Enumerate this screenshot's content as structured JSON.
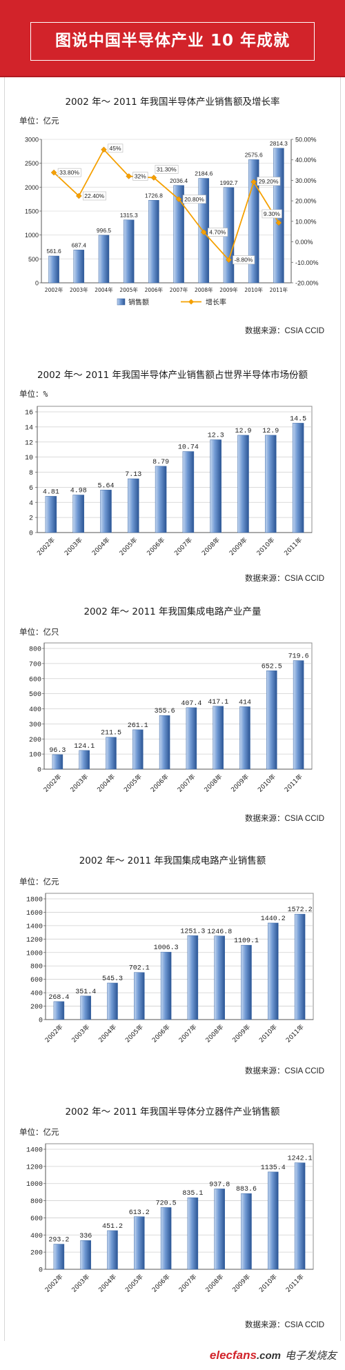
{
  "header": {
    "title": "图说中国半导体产业 10 年成就"
  },
  "colors": {
    "header_red": "#d2232a",
    "bar_blue": "#5b86c4",
    "line_orange": "#f5a000"
  },
  "chart_data": [
    {
      "type": "bar",
      "title": "2002 年～ 2011 年我国半导体产业销售额及增长率",
      "unit": "单位：亿元",
      "categories": [
        "2002年",
        "2003年",
        "2004年",
        "2005年",
        "2006年",
        "2007年",
        "2008年",
        "2009年",
        "2010年",
        "2011年"
      ],
      "series": [
        {
          "name": "销售额",
          "type": "bar",
          "values": [
            561.6,
            687.4,
            996.5,
            1315.3,
            1726.8,
            2036.4,
            2184.6,
            1992.7,
            2575.6,
            2814.3
          ]
        },
        {
          "name": "增长率",
          "type": "line",
          "values": [
            33.8,
            22.4,
            45,
            32,
            31.3,
            20.8,
            4.7,
            -8.8,
            29.2,
            9.3
          ],
          "labels": [
            "33.80%",
            "22.40%",
            "45%",
            "32%",
            "31.30%",
            "20.80%",
            "4.70%",
            "-8.80%",
            "29.20%",
            "9.30%"
          ]
        }
      ],
      "ylim": [
        0,
        3000
      ],
      "yticks": [
        0,
        500,
        1000,
        1500,
        2000,
        2500,
        3000
      ],
      "y2lim": [
        -20,
        50
      ],
      "y2ticks": [
        -20,
        -10,
        0,
        10,
        20,
        30,
        40,
        50
      ],
      "grid": true,
      "legend": "bottom",
      "source": "数据来源：CSIA CCID"
    },
    {
      "type": "bar",
      "title": "2002 年～ 2011 年我国半导体产业销售额占世界半导体市场份额",
      "unit": "单位：%",
      "categories": [
        "2002年",
        "2003年",
        "2004年",
        "2005年",
        "2006年",
        "2007年",
        "2008年",
        "2009年",
        "2010年",
        "2011年"
      ],
      "values": [
        4.81,
        4.98,
        5.64,
        7.13,
        8.79,
        10.74,
        12.3,
        12.9,
        12.9,
        14.5
      ],
      "ylim": [
        0,
        16
      ],
      "yticks": [
        0,
        2,
        4,
        6,
        8,
        10,
        12,
        14,
        16
      ],
      "grid": true,
      "source": "数据来源：CSIA CCID"
    },
    {
      "type": "bar",
      "title": "2002 年～ 2011 年我国集成电路产业产量",
      "unit": "单位：亿只",
      "categories": [
        "2002年",
        "2003年",
        "2004年",
        "2005年",
        "2006年",
        "2007年",
        "2008年",
        "2009年",
        "2010年",
        "2011年"
      ],
      "values": [
        96.3,
        124.1,
        211.5,
        261.1,
        355.6,
        407.4,
        417.1,
        414,
        652.5,
        719.6
      ],
      "ylim": [
        0,
        800
      ],
      "yticks": [
        0,
        100,
        200,
        300,
        400,
        500,
        600,
        700,
        800
      ],
      "grid": true,
      "source": "数据来源：CSIA CCID"
    },
    {
      "type": "bar",
      "title": "2002 年～ 2011 年我国集成电路产业销售额",
      "unit": "单位：亿元",
      "categories": [
        "2002年",
        "2003年",
        "2004年",
        "2005年",
        "2006年",
        "2007年",
        "2008年",
        "2009年",
        "2010年",
        "2011年"
      ],
      "values": [
        268.4,
        351.4,
        545.3,
        702.1,
        1006.3,
        1251.3,
        1246.8,
        1109.1,
        1440.2,
        1572.2
      ],
      "ylim": [
        0,
        1800
      ],
      "yticks": [
        0,
        200,
        400,
        600,
        800,
        1000,
        1200,
        1400,
        1600,
        1800
      ],
      "grid": true,
      "source": "数据来源：CSIA CCID"
    },
    {
      "type": "bar",
      "title": "2002 年～ 2011 年我国半导体分立器件产业销售额",
      "unit": "单位：亿元",
      "categories": [
        "2002年",
        "2003年",
        "2004年",
        "2005年",
        "2006年",
        "2007年",
        "2008年",
        "2009年",
        "2010年",
        "2011年"
      ],
      "values": [
        293.2,
        336,
        451.2,
        613.2,
        720.5,
        835.1,
        937.8,
        883.6,
        1135.4,
        1242.1
      ],
      "ylim": [
        0,
        1400
      ],
      "yticks": [
        0,
        200,
        400,
        600,
        800,
        1000,
        1200,
        1400
      ],
      "grid": true,
      "source": "数据来源：CSIA CCID"
    }
  ],
  "footer": {
    "logo_brand": "elecfans",
    "logo_domain": ".com",
    "logo_cn": "电子发烧友"
  }
}
